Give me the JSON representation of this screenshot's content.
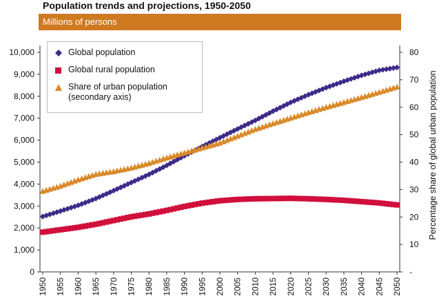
{
  "chart_data": {
    "type": "scatter",
    "title": "Population trends and projections, 1950-2050",
    "units_banner": "Millions of persons",
    "y2label": "Percentage share of global urban population",
    "x": [
      1950,
      1955,
      1960,
      1965,
      1970,
      1975,
      1980,
      1985,
      1990,
      1995,
      2000,
      2005,
      2010,
      2015,
      2020,
      2025,
      2030,
      2035,
      2040,
      2045,
      2050
    ],
    "x_ticks": [
      "1950",
      "1955",
      "1960",
      "1965",
      "1970",
      "1975",
      "1980",
      "1985",
      "1990",
      "1995",
      "2000",
      "2005",
      "2010",
      "2015",
      "2020",
      "2025",
      "2030",
      "2035",
      "2040",
      "2045",
      "2050"
    ],
    "ylim": [
      0,
      10000
    ],
    "y_ticks": [
      "0",
      "1,000",
      "2,000",
      "3,000",
      "4,000",
      "5,000",
      "6,000",
      "7,000",
      "8,000",
      "9,000",
      "10,000"
    ],
    "y2lim": [
      0,
      80
    ],
    "y2_ticks": [
      "-",
      "10",
      "20",
      "30",
      "40",
      "50",
      "60",
      "70",
      "80"
    ],
    "series": [
      {
        "name": "Global population",
        "axis": "left",
        "marker": "diamond",
        "color": "#3d2b8a",
        "values": [
          2520,
          2770,
          3030,
          3340,
          3700,
          4070,
          4440,
          4850,
          5290,
          5710,
          6110,
          6510,
          6900,
          7320,
          7720,
          8070,
          8390,
          8680,
          8950,
          9180,
          9310
        ]
      },
      {
        "name": "Global rural population",
        "axis": "left",
        "marker": "square",
        "color": "#d10f3c",
        "values": [
          1810,
          1920,
          2030,
          2170,
          2340,
          2510,
          2640,
          2800,
          2980,
          3130,
          3240,
          3300,
          3330,
          3340,
          3350,
          3330,
          3300,
          3260,
          3200,
          3140,
          3050
        ]
      },
      {
        "name": "Share of urban population",
        "note": "(secondary axis)",
        "axis": "right",
        "marker": "triangle",
        "color": "#d98a2a",
        "values": [
          29.3,
          31.2,
          33.5,
          35.5,
          36.5,
          37.8,
          39.5,
          41.5,
          43.3,
          45.1,
          46.9,
          49.4,
          51.9,
          54.0,
          56.0,
          58.0,
          59.9,
          61.7,
          63.5,
          65.4,
          67.3
        ]
      }
    ],
    "grid": false,
    "legend_position": "top-left"
  }
}
